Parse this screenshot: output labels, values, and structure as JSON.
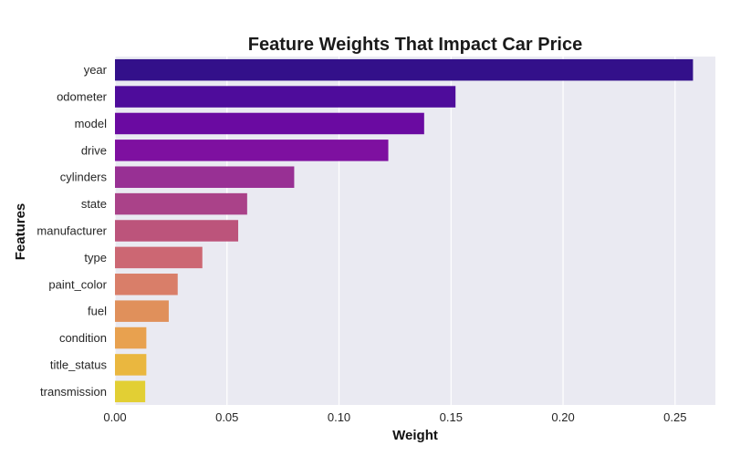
{
  "chart_data": {
    "type": "bar",
    "orientation": "horizontal",
    "title": "Feature Weights That Impact Car Price",
    "xlabel": "Weight",
    "ylabel": "Features",
    "categories": [
      "year",
      "odometer",
      "model",
      "drive",
      "cylinders",
      "state",
      "manufacturer",
      "type",
      "paint_color",
      "fuel",
      "condition",
      "title_status",
      "transmission"
    ],
    "values": [
      0.258,
      0.152,
      0.138,
      0.122,
      0.08,
      0.059,
      0.055,
      0.039,
      0.028,
      0.024,
      0.014,
      0.014,
      0.0135
    ],
    "colors": [
      "#33108a",
      "#4e0c9b",
      "#6a0aa1",
      "#7e10a0",
      "#983094",
      "#aa4289",
      "#bc547b",
      "#cc6773",
      "#d97e69",
      "#e0905b",
      "#e8a14f",
      "#eab73f",
      "#e2cf34"
    ],
    "xlim": [
      0,
      0.268
    ],
    "xticks": [
      "0.00",
      "0.05",
      "0.10",
      "0.15",
      "0.20",
      "0.25"
    ],
    "xtick_values": [
      0,
      0.05,
      0.1,
      0.15,
      0.2,
      0.25
    ],
    "grid": "vertical",
    "background": "#eaeaf2"
  }
}
